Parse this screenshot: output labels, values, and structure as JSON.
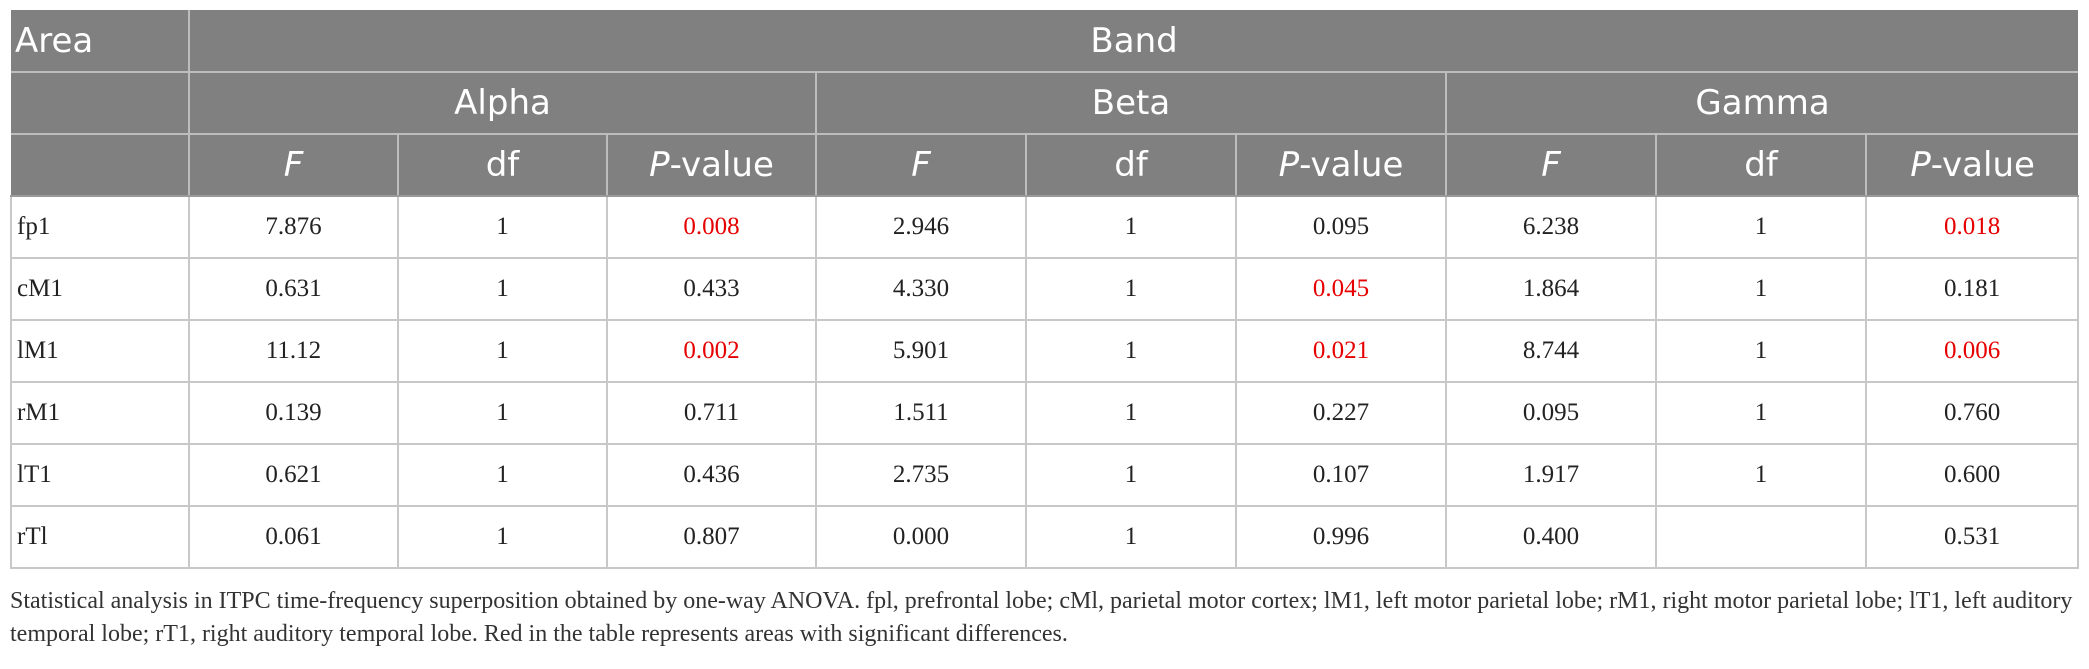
{
  "header": {
    "area": "Area",
    "band": "Band",
    "bands": [
      "Alpha",
      "Beta",
      "Gamma"
    ],
    "cols": {
      "f": "F",
      "df": "df",
      "p_italic": "P",
      "p_suffix": "-value"
    }
  },
  "colors": {
    "header_bg": "#808080",
    "header_text": "#ffffff",
    "significant": "#e60000"
  },
  "rows": [
    {
      "area": "fp1",
      "alpha": {
        "f": "7.876",
        "df": "1",
        "p": "0.008",
        "sig": true
      },
      "beta": {
        "f": "2.946",
        "df": "1",
        "p": "0.095",
        "sig": false
      },
      "gamma": {
        "f": "6.238",
        "df": "1",
        "p": "0.018",
        "sig": true
      }
    },
    {
      "area": "cM1",
      "alpha": {
        "f": "0.631",
        "df": "1",
        "p": "0.433",
        "sig": false
      },
      "beta": {
        "f": "4.330",
        "df": "1",
        "p": "0.045",
        "sig": true
      },
      "gamma": {
        "f": "1.864",
        "df": "1",
        "p": "0.181",
        "sig": false
      }
    },
    {
      "area": "lM1",
      "alpha": {
        "f": "11.12",
        "df": "1",
        "p": "0.002",
        "sig": true
      },
      "beta": {
        "f": "5.901",
        "df": "1",
        "p": "0.021",
        "sig": true
      },
      "gamma": {
        "f": "8.744",
        "df": "1",
        "p": "0.006",
        "sig": true
      }
    },
    {
      "area": "rM1",
      "alpha": {
        "f": "0.139",
        "df": "1",
        "p": "0.711",
        "sig": false
      },
      "beta": {
        "f": "1.511",
        "df": "1",
        "p": "0.227",
        "sig": false
      },
      "gamma": {
        "f": "0.095",
        "df": "1",
        "p": "0.760",
        "sig": false
      }
    },
    {
      "area": "lT1",
      "alpha": {
        "f": "0.621",
        "df": "1",
        "p": "0.436",
        "sig": false
      },
      "beta": {
        "f": "2.735",
        "df": "1",
        "p": "0.107",
        "sig": false
      },
      "gamma": {
        "f": "1.917",
        "df": "1",
        "p": "0.600",
        "sig": false
      }
    },
    {
      "area": "rTl",
      "alpha": {
        "f": "0.061",
        "df": "1",
        "p": "0.807",
        "sig": false
      },
      "beta": {
        "f": "0.000",
        "df": "1",
        "p": "0.996",
        "sig": false
      },
      "gamma": {
        "f": "0.400",
        "df": "",
        "p": "0.531",
        "sig": false
      }
    }
  ],
  "note": "Statistical analysis in ITPC time-frequency superposition obtained by one-way ANOVA. fpl, prefrontal lobe; cMl, parietal motor cortex; lM1, left motor parietal lobe; rM1, right motor parietal lobe; lT1, left auditory temporal lobe; rT1, right auditory temporal lobe. Red in the table represents areas with significant differences."
}
